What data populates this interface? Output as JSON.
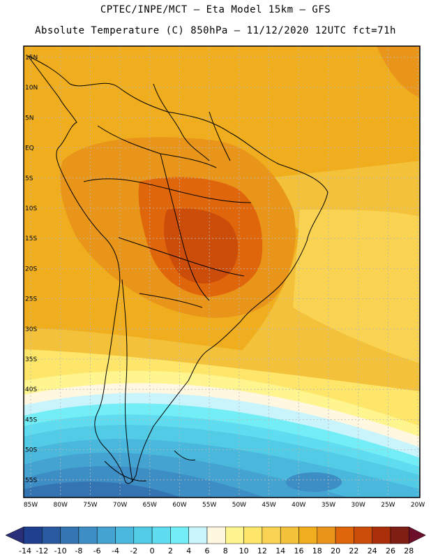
{
  "header": {
    "line1": "CPTEC/INPE/MCT –  Eta Model 15km – GFS",
    "line2": "Absolute Temperature (C) 850hPa – 11/12/2020 12UTC fct=71h"
  },
  "map": {
    "lat_labels": [
      "15N",
      "10N",
      "5N",
      "EQ",
      "5S",
      "10S",
      "15S",
      "20S",
      "25S",
      "30S",
      "35S",
      "40S",
      "45S",
      "50S",
      "55S"
    ],
    "lon_labels": [
      "85W",
      "80W",
      "75W",
      "70W",
      "65W",
      "60W",
      "55W",
      "50W",
      "45W",
      "40W",
      "35W",
      "30W",
      "25W",
      "20W"
    ]
  },
  "colorbar": {
    "labels": [
      "-14",
      "-12",
      "-10",
      "-8",
      "-6",
      "-4",
      "-2",
      "0",
      "2",
      "4",
      "6",
      "8",
      "10",
      "12",
      "14",
      "16",
      "18",
      "20",
      "22",
      "24",
      "26",
      "28"
    ],
    "colors": [
      "#1f3f8f",
      "#2a5a9f",
      "#3574b3",
      "#3d8ec4",
      "#44a3d1",
      "#4ab8dd",
      "#52cbe6",
      "#5fdcef",
      "#73eef7",
      "#c9f4fb",
      "#fff7e0",
      "#fff58f",
      "#fde66a",
      "#f9d351",
      "#f3c13a",
      "#f0ae1e",
      "#e99519",
      "#e0660b",
      "#cc4c09",
      "#a9300a",
      "#7f1e12"
    ],
    "low_arrow_color": "#2a2f7a",
    "high_arrow_color": "#6b0f2a"
  }
}
